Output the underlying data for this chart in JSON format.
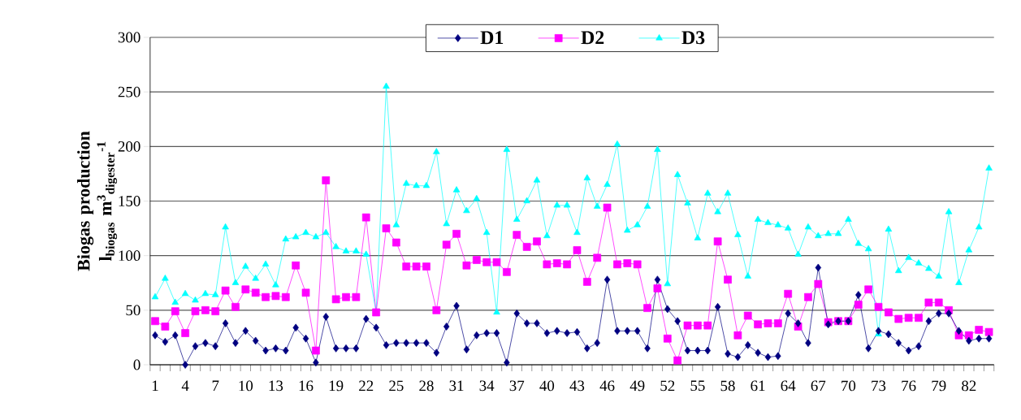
{
  "chart_data": {
    "type": "line",
    "ylabel": "Biogas production l$_{biogas}$ m$^{3}$$_{digester}$$^{-1}$",
    "categories": [
      "1",
      null,
      null,
      "4",
      null,
      null,
      "7",
      null,
      null,
      "10",
      null,
      null,
      "13",
      null,
      null,
      "16",
      null,
      null,
      "19",
      null,
      null,
      "22",
      null,
      null,
      "25",
      null,
      null,
      "28",
      null,
      null,
      "31",
      null,
      null,
      "34",
      null,
      null,
      "37",
      null,
      null,
      "40",
      null,
      null,
      "43",
      null,
      null,
      "46",
      null,
      null,
      "49",
      null,
      null,
      "52",
      null,
      null,
      "55",
      null,
      null,
      "58",
      null,
      null,
      "61",
      null,
      null,
      "64",
      null,
      null,
      "67",
      null,
      null,
      "70",
      null,
      null,
      "73",
      null,
      null,
      "76",
      null,
      null,
      "79",
      null,
      null,
      "82",
      null,
      null
    ],
    "series": [
      {
        "name": "D1",
        "color": "#000080",
        "marker": "diamond",
        "values": [
          27,
          21,
          27,
          0,
          17,
          20,
          17,
          38,
          20,
          31,
          22,
          13,
          15,
          13,
          34,
          24,
          2,
          44,
          15,
          15,
          15,
          42,
          34,
          18,
          20,
          20,
          20,
          20,
          11,
          35,
          54,
          14,
          27,
          29,
          29,
          2,
          47,
          38,
          38,
          29,
          31,
          29,
          30,
          15,
          20,
          78,
          31,
          31,
          31,
          15,
          78,
          51,
          40,
          13,
          13,
          13,
          53,
          10,
          7,
          18,
          11,
          7,
          8,
          47,
          38,
          20,
          89,
          37,
          40,
          40,
          64,
          15,
          31,
          28,
          20,
          13,
          17,
          40,
          47,
          47,
          31,
          22,
          24,
          24
        ]
      },
      {
        "name": "D2",
        "color": "#ff00ff",
        "marker": "square",
        "values": [
          40,
          35,
          49,
          29,
          49,
          50,
          49,
          68,
          53,
          69,
          66,
          62,
          63,
          62,
          91,
          66,
          13,
          169,
          60,
          62,
          62,
          135,
          48,
          125,
          112,
          90,
          90,
          90,
          50,
          110,
          120,
          91,
          96,
          94,
          94,
          85,
          119,
          108,
          113,
          92,
          93,
          92,
          105,
          76,
          98,
          144,
          92,
          93,
          92,
          52,
          70,
          24,
          4,
          36,
          36,
          36,
          113,
          78,
          27,
          45,
          37,
          38,
          38,
          65,
          35,
          62,
          74,
          39,
          40,
          40,
          55,
          69,
          53,
          48,
          42,
          43,
          43,
          57,
          57,
          50,
          27,
          27,
          32,
          30
        ]
      },
      {
        "name": "D3",
        "color": "#00ffff",
        "marker": "triangle",
        "values": [
          62,
          79,
          57,
          65,
          59,
          65,
          64,
          126,
          75,
          90,
          79,
          92,
          73,
          115,
          117,
          121,
          117,
          121,
          108,
          104,
          104,
          101,
          48,
          255,
          128,
          166,
          164,
          164,
          195,
          129,
          160,
          141,
          152,
          121,
          48,
          197,
          133,
          150,
          169,
          118,
          146,
          146,
          121,
          171,
          145,
          165,
          202,
          123,
          128,
          145,
          197,
          74,
          174,
          148,
          116,
          157,
          140,
          157,
          119,
          81,
          133,
          130,
          128,
          125,
          101,
          126,
          118,
          120,
          120,
          133,
          111,
          106,
          28,
          124,
          86,
          98,
          93,
          88,
          81,
          140,
          75,
          105,
          126,
          180
        ]
      }
    ],
    "ylim": [
      0,
      300
    ],
    "yticks": [
      0,
      50,
      100,
      150,
      200,
      250,
      300
    ],
    "grid": "y",
    "legend": "top",
    "line_style": "solid"
  }
}
